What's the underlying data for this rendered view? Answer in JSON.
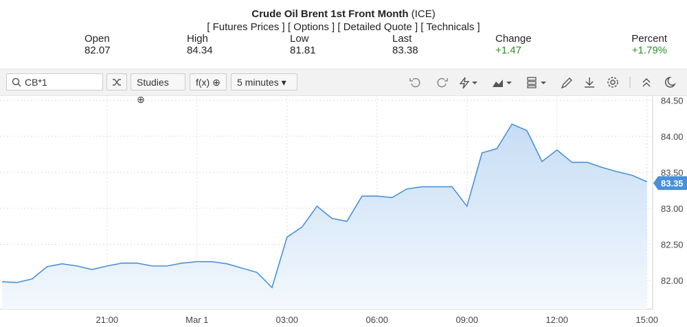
{
  "header": {
    "title": "Crude Oil Brent 1st Front Month",
    "exchange": "(ICE)",
    "links": [
      "[ Futures Prices ]",
      "[ Options ]",
      "[ Detailed Quote ]",
      "[ Technicals ]"
    ],
    "quote": [
      {
        "label": "Open",
        "value": "82.07"
      },
      {
        "label": "High",
        "value": "84.34"
      },
      {
        "label": "Low",
        "value": "81.81"
      },
      {
        "label": "Last",
        "value": "83.38"
      },
      {
        "label": "Change",
        "value": "+1.47"
      },
      {
        "label": "Percent",
        "value": "+1.79%"
      }
    ]
  },
  "toolbar": {
    "symbol": "CB*1",
    "studies": "Studies",
    "functions": "f(x)",
    "interval": "5 minutes"
  },
  "chart_data": {
    "type": "line",
    "categories": [
      null,
      null,
      null,
      null,
      null,
      null,
      null,
      "21:00",
      null,
      null,
      null,
      null,
      null,
      "Mar 1",
      null,
      null,
      null,
      null,
      null,
      "03:00",
      null,
      null,
      null,
      null,
      null,
      "06:00",
      null,
      null,
      null,
      null,
      null,
      "09:00",
      null,
      null,
      null,
      null,
      null,
      "12:00",
      null,
      null,
      null,
      null,
      null,
      "15:00"
    ],
    "series": [
      {
        "name": "CB*1",
        "color": "#4a90d9",
        "values": [
          81.98,
          81.97,
          82.02,
          82.19,
          82.23,
          82.2,
          82.15,
          82.2,
          82.24,
          82.24,
          82.2,
          82.2,
          82.24,
          82.26,
          82.26,
          82.23,
          82.17,
          82.11,
          81.9,
          82.6,
          82.74,
          83.03,
          82.86,
          82.82,
          83.17,
          83.17,
          83.15,
          83.27,
          83.3,
          83.3,
          83.3,
          83.03,
          83.77,
          83.83,
          84.17,
          84.08,
          83.65,
          83.81,
          83.64,
          83.64,
          83.57,
          83.51,
          83.46,
          83.37
        ]
      }
    ],
    "last_value": 83.35,
    "ylim": [
      81.6,
      84.57
    ],
    "yticks": [
      {
        "value": 82,
        "label": "82.00"
      },
      {
        "value": 82.5,
        "label": "82.50"
      },
      {
        "value": 83,
        "label": "83.00"
      },
      {
        "value": 83.5,
        "label": "83.50"
      },
      {
        "value": 84,
        "label": "84.00"
      },
      {
        "value": 84.5,
        "label": "84.50"
      }
    ],
    "grid": true
  }
}
